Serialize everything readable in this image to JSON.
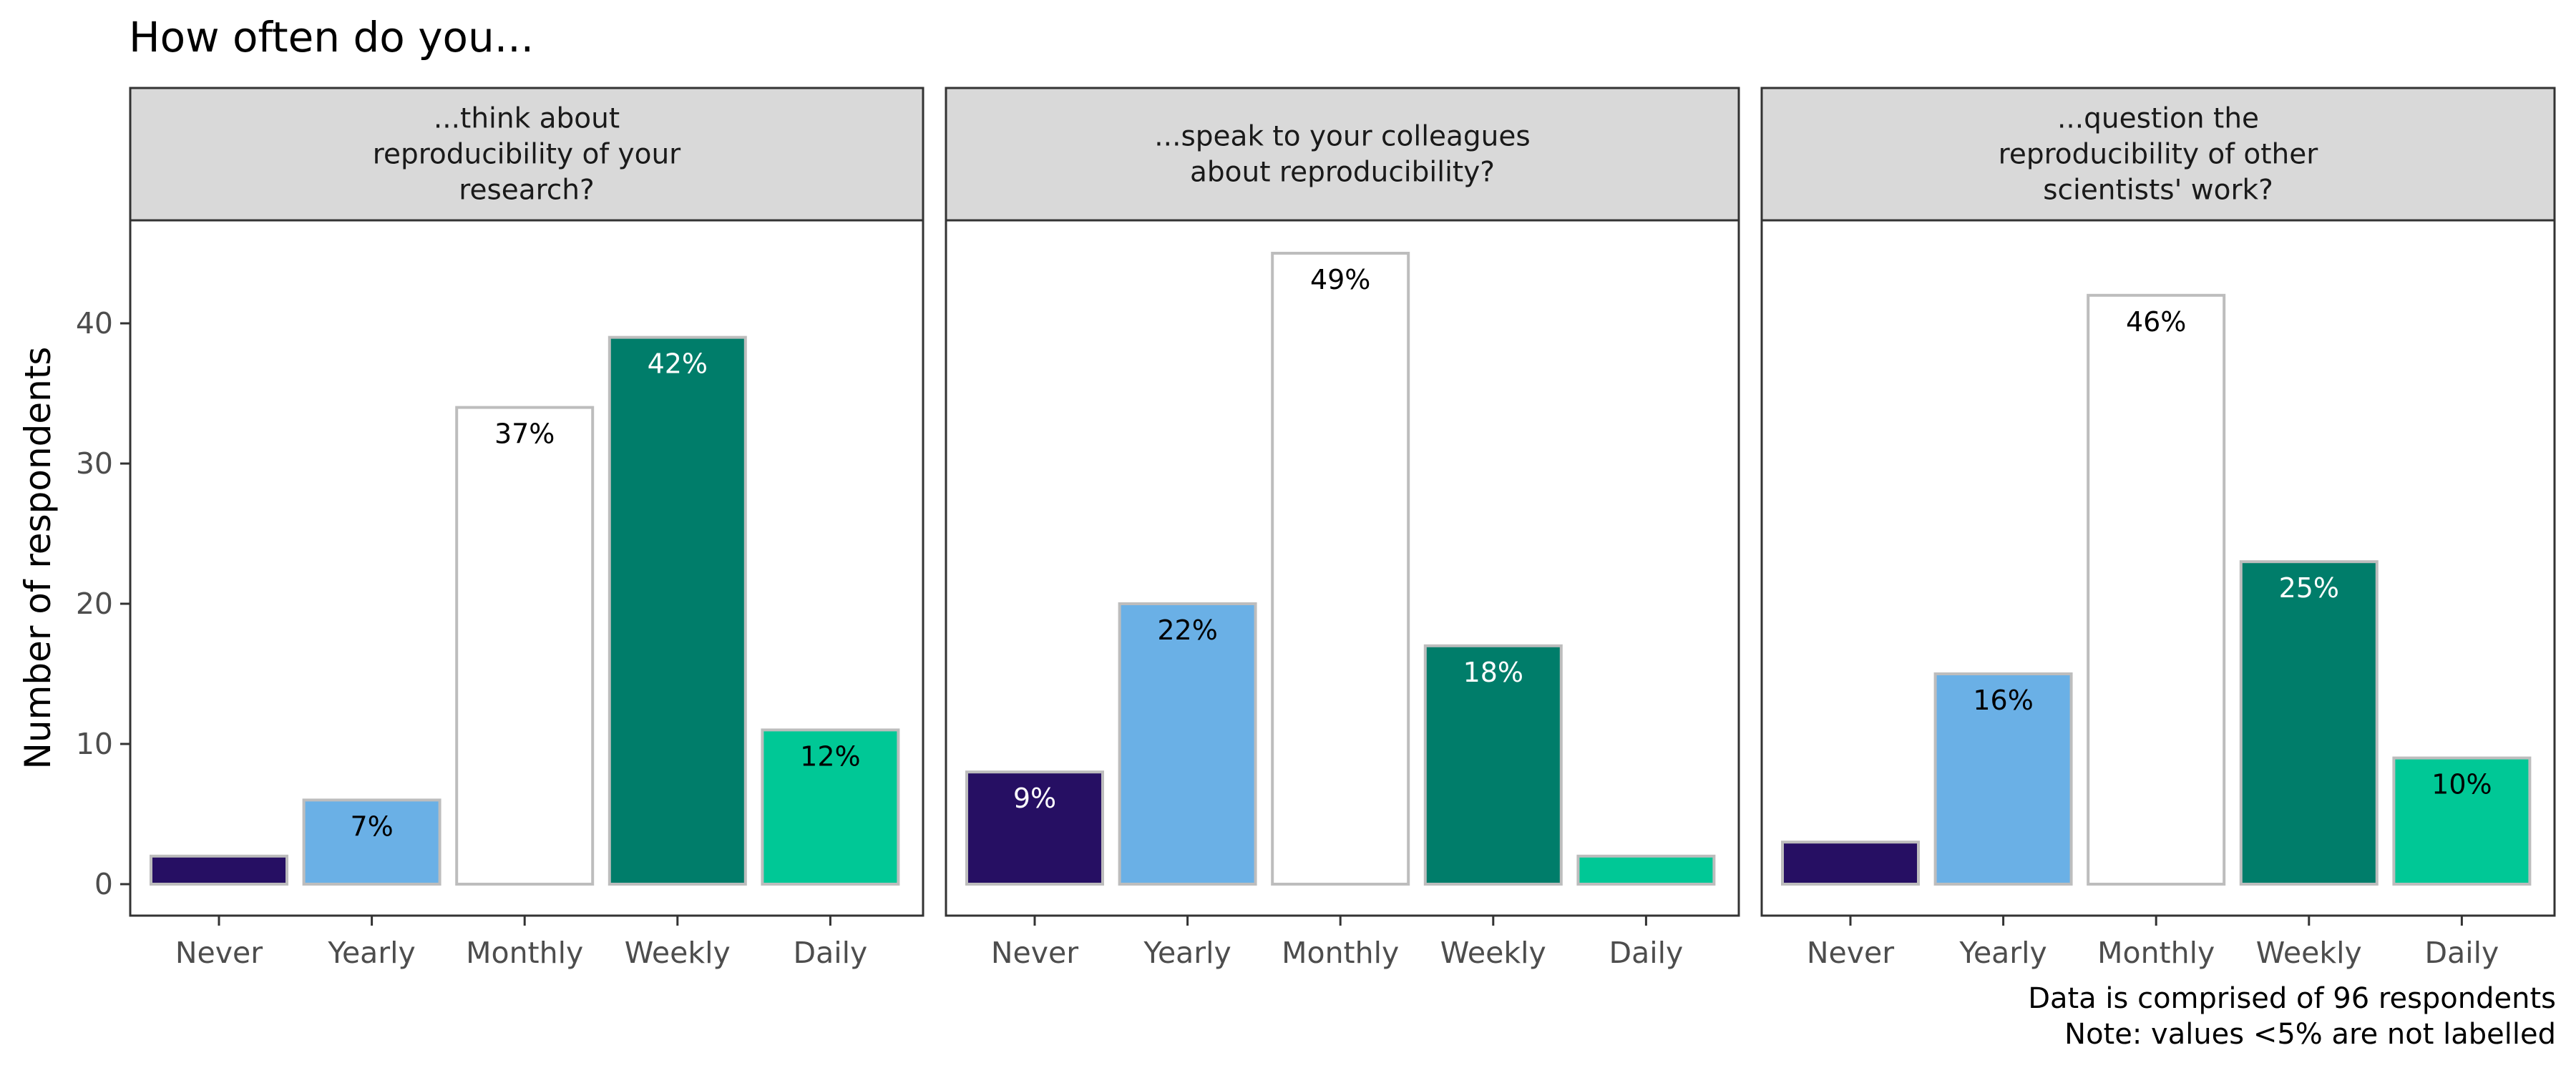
{
  "chart_data": {
    "type": "bar",
    "title": "How often do you...",
    "ylabel": "Number of respondents",
    "ylim": [
      0,
      45
    ],
    "yticks": [
      0,
      10,
      20,
      30,
      40
    ],
    "categories": [
      "Never",
      "Yearly",
      "Monthly",
      "Weekly",
      "Daily"
    ],
    "colors": [
      "#260f63",
      "#6ab0e6",
      "#ffffff",
      "#007d6a",
      "#00c896"
    ],
    "label_colors": [
      "#ffffff",
      "#000000",
      "#000000",
      "#ffffff",
      "#000000"
    ],
    "bar_border": "#bdbdbd",
    "strip_fill": "#d9d9d9",
    "panels": [
      {
        "title_lines": [
          "...think about",
          "reproducibility of your",
          "research?"
        ],
        "values": [
          2,
          6,
          34,
          39,
          11
        ],
        "labels": [
          "",
          "7%",
          "37%",
          "42%",
          "12%"
        ]
      },
      {
        "title_lines": [
          "...speak to your colleagues",
          "about reproducibility?"
        ],
        "values": [
          8,
          20,
          45,
          17,
          2
        ],
        "labels": [
          "9%",
          "22%",
          "49%",
          "18%",
          ""
        ]
      },
      {
        "title_lines": [
          "...question the",
          "reproducibility of other",
          "scientists' work?"
        ],
        "values": [
          3,
          15,
          42,
          23,
          9
        ],
        "labels": [
          "",
          "16%",
          "46%",
          "25%",
          "10%"
        ]
      }
    ],
    "caption_lines": [
      "Data is comprised of 96 respondents",
      "Note: values <5% are not labelled"
    ]
  }
}
